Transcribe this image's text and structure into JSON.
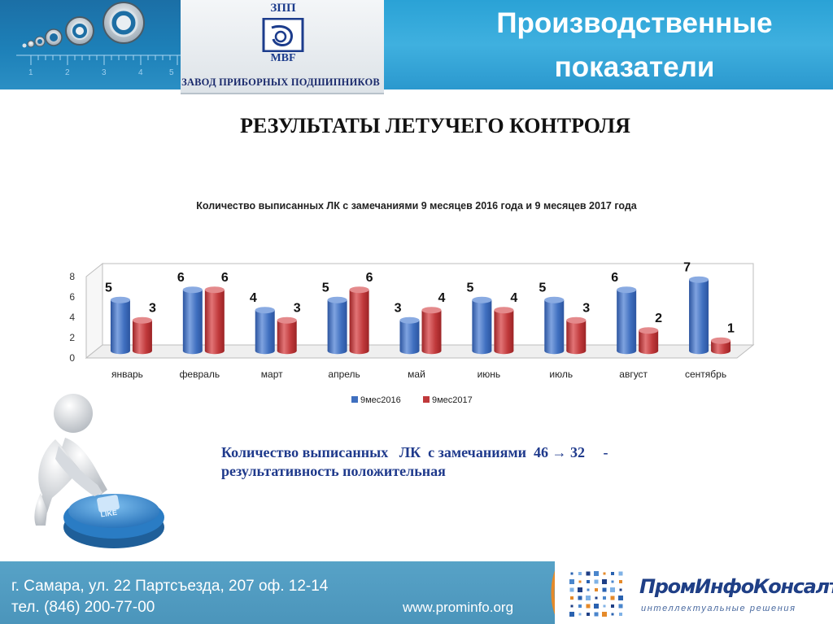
{
  "header": {
    "title": "Производственные\nпоказатели",
    "logo_abbr": "ЗПП",
    "logo_mbf": "MBF",
    "logo_name": "ЗАВОД ПРИБОРНЫХ ПОДШИПНИКОВ",
    "ruler_numbers": [
      "1",
      "2",
      "3",
      "4",
      "5"
    ]
  },
  "slide_heading": "РЕЗУЛЬТАТЫ ЛЕТУЧЕГО КОНТРОЛЯ",
  "chart_data": {
    "type": "bar",
    "title": "Количество выписанных  ЛК  с замечаниями  9 месяцев 2016 года и 9 месяцев 2017 года",
    "categories": [
      "январь",
      "февраль",
      "март",
      "апрель",
      "май",
      "июнь",
      "июль",
      "август",
      "сентябрь"
    ],
    "series": [
      {
        "name": "9мес2016",
        "values": [
          5,
          6,
          4,
          5,
          3,
          5,
          5,
          6,
          7
        ],
        "color": "#3f6fbf"
      },
      {
        "name": "9мес2017",
        "values": [
          3,
          6,
          3,
          6,
          4,
          4,
          3,
          2,
          1
        ],
        "color": "#c0393b"
      }
    ],
    "y_ticks": [
      "0",
      "2",
      "4",
      "6",
      "8"
    ],
    "ylim": [
      0,
      8
    ],
    "grid": false,
    "legend_position": "bottom",
    "style": "3d-cylinder"
  },
  "summary": {
    "line1": "Количество выписанных   ЛК  с замечаниями  46 → 32     -",
    "line2": "результативность  положительная"
  },
  "footer": {
    "address_line1": "г. Самара, ул. 22 Партсъезда, 207 оф. 12-14",
    "address_line2": "тел. (846) 200-77-00",
    "website": "www.prominfo.org",
    "brand_name": "ПромИнфоКонсалт",
    "brand_tagline": "интеллектуальные решения"
  },
  "colors": {
    "header_blue": "#2aa2d6",
    "footer_blue": "#4b95bb",
    "summary_text": "#1f3a8c"
  }
}
